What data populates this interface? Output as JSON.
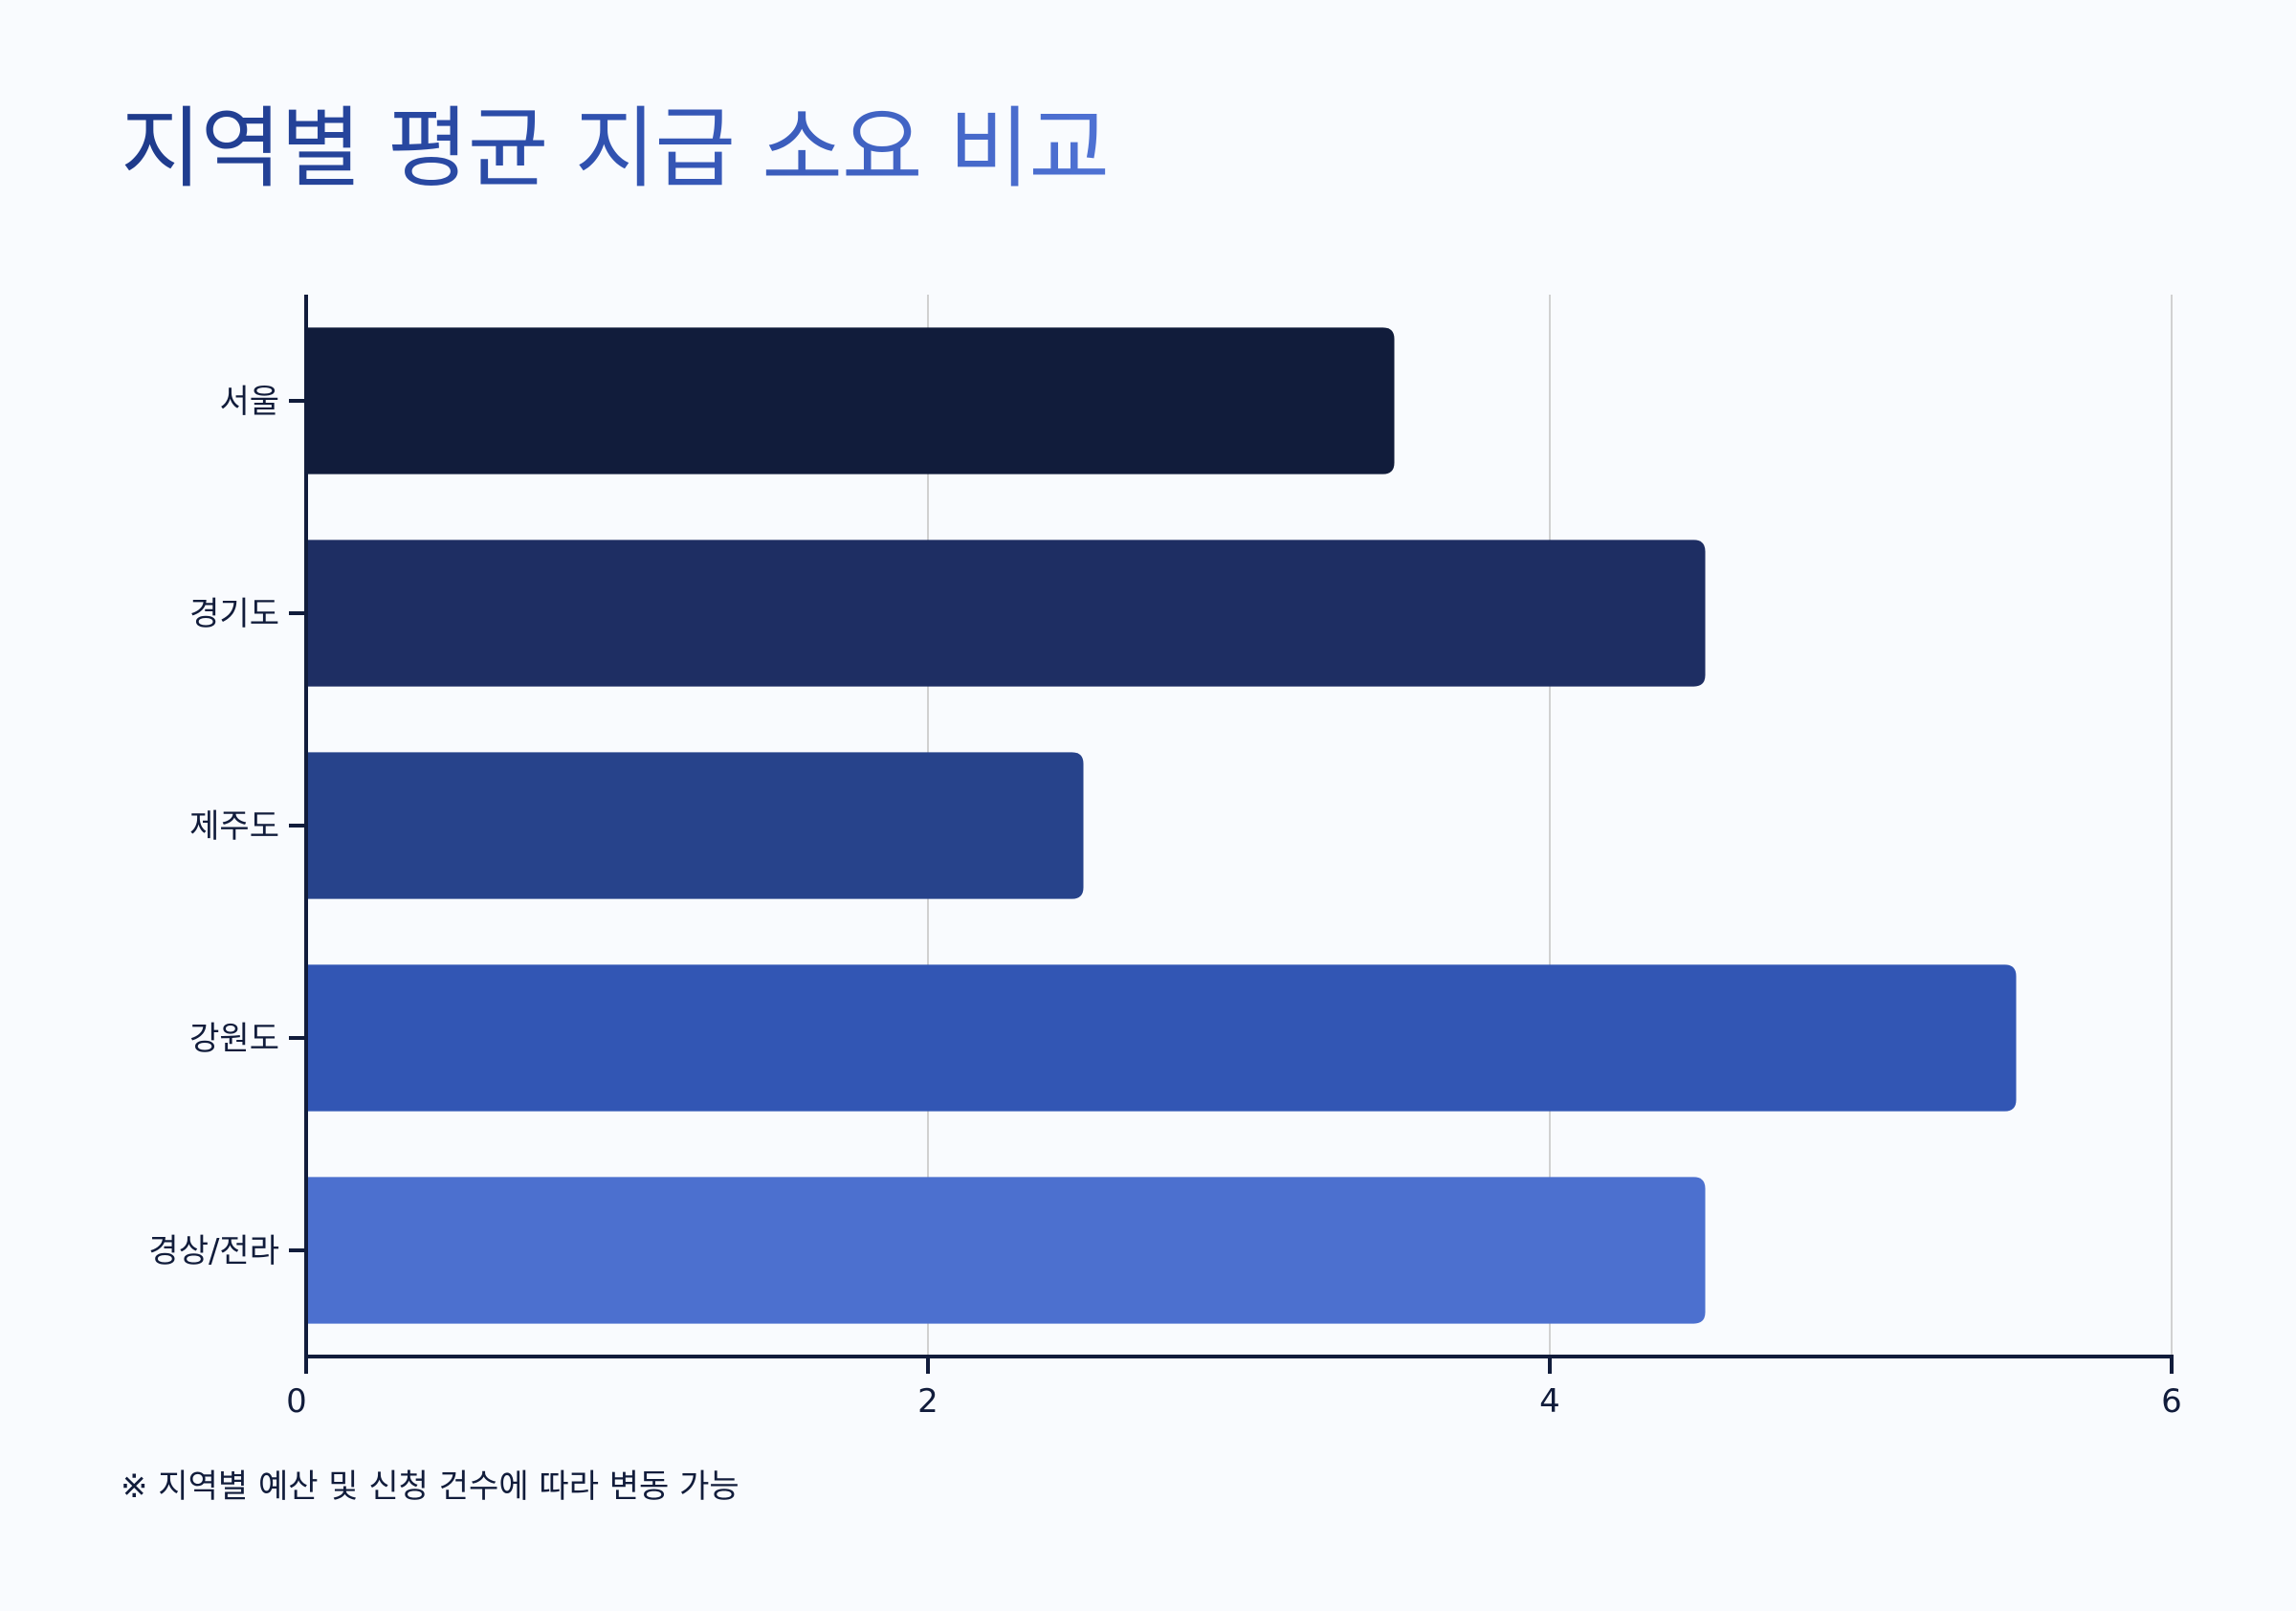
{
  "title": "지역별 평균 지급 소요 비교",
  "footnote": "※ 지역별 예산 및 신청 건수에 따라 변동 가능",
  "chart_data": {
    "type": "bar",
    "orientation": "horizontal",
    "title": "지역별 평균 지급 소요 비교",
    "xlabel": "",
    "ylabel": "",
    "categories": [
      "서울",
      "경기도",
      "제주도",
      "강원도",
      "경상/전라"
    ],
    "values": [
      3.5,
      4.5,
      2.5,
      5.5,
      4.5
    ],
    "xlim": [
      0,
      6
    ],
    "xticks": [
      0,
      2,
      4,
      6
    ],
    "xtick_labels": [
      "0",
      "2",
      "4",
      "6"
    ],
    "grid": "vertical",
    "legend": "none",
    "colors": [
      "#111c3b",
      "#1e2e63",
      "#27438b",
      "#3256b4",
      "#4c70cf"
    ],
    "axis_color": "#111c3b",
    "grid_color": "#d1d1d1"
  }
}
